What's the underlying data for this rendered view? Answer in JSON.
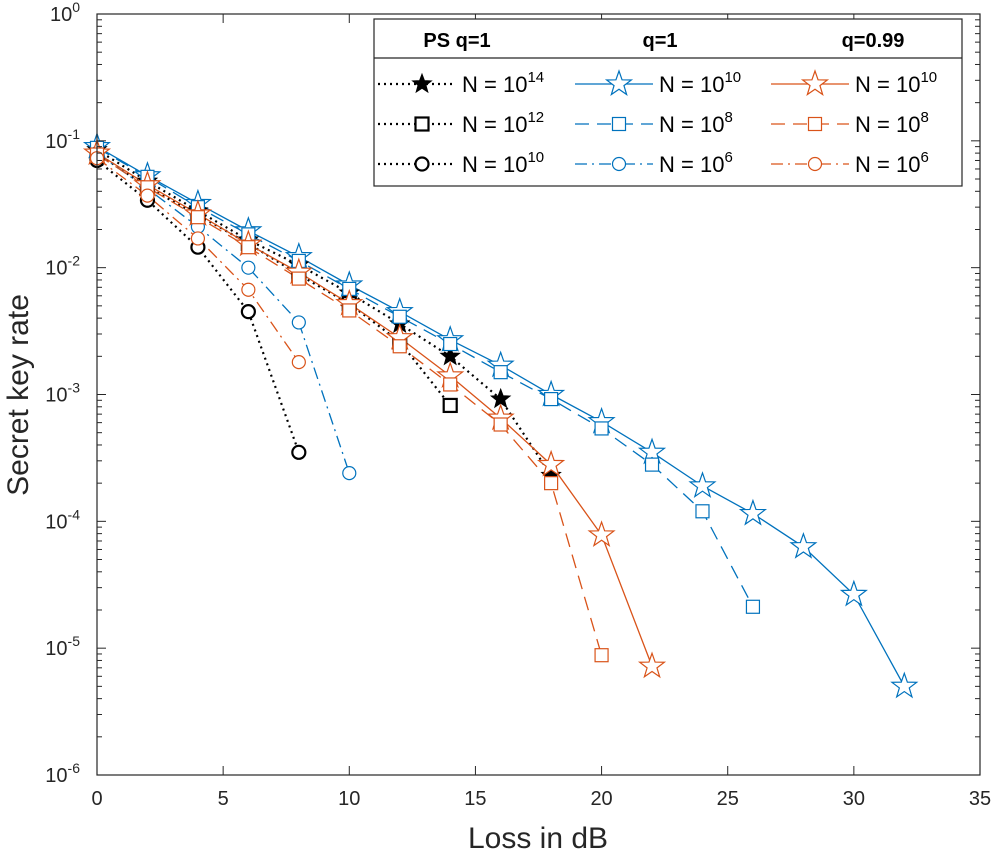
{
  "chart_data": {
    "type": "line",
    "xlabel": "Loss in dB",
    "ylabel": "Secret key rate",
    "xlim": [
      0,
      35
    ],
    "ylim_log10": [
      -6,
      0
    ],
    "yscale": "log",
    "x_ticks": [
      0,
      5,
      10,
      15,
      20,
      25,
      30,
      35
    ],
    "y_tick_exponents": [
      -6,
      -5,
      -4,
      -3,
      -2,
      -1,
      0
    ],
    "y_tick_base": "10",
    "legend": {
      "placement": "top-right",
      "columns": [
        {
          "heading": "PS q=1"
        },
        {
          "heading": "q=1"
        },
        {
          "heading": "q=0.99"
        }
      ],
      "entry_prefix": "N = 10"
    },
    "colors": {
      "ps": "#000000",
      "q1": "#0072BD",
      "q099": "#D95319",
      "axis": "#262626"
    },
    "series": [
      {
        "name": "PS q=1, N = 10^14",
        "group": "ps",
        "n_exp": "14",
        "line": "dotted",
        "marker": "filled-star",
        "color": "#000000",
        "x": [
          0,
          2,
          4,
          6,
          8,
          10,
          12,
          14,
          16,
          18
        ],
        "y": [
          0.085,
          0.048,
          0.028,
          0.0165,
          0.0105,
          0.0063,
          0.0036,
          0.002,
          0.00092,
          0.00023
        ]
      },
      {
        "name": "PS q=1, N = 10^12",
        "group": "ps",
        "n_exp": "12",
        "line": "dotted",
        "marker": "square",
        "color": "#000000",
        "x": [
          0,
          2,
          4,
          6,
          8,
          10,
          12,
          14
        ],
        "y": [
          0.08,
          0.043,
          0.026,
          0.0155,
          0.0088,
          0.0052,
          0.0026,
          0.00082
        ]
      },
      {
        "name": "PS q=1, N = 10^10",
        "group": "ps",
        "n_exp": "10",
        "line": "dotted",
        "marker": "circle",
        "color": "#000000",
        "x": [
          0,
          2,
          4,
          6,
          8
        ],
        "y": [
          0.07,
          0.034,
          0.0145,
          0.0045,
          0.00035
        ]
      },
      {
        "name": "q=1, N = 10^10",
        "group": "q1",
        "n_exp": "10",
        "line": "solid",
        "marker": "star",
        "color": "#0072BD",
        "x": [
          0,
          2,
          4,
          6,
          8,
          10,
          12,
          14,
          16,
          18,
          20,
          22,
          24,
          26,
          28,
          30,
          32
        ],
        "y": [
          0.09,
          0.053,
          0.032,
          0.0195,
          0.0122,
          0.0073,
          0.0045,
          0.0027,
          0.0017,
          0.001,
          0.00061,
          0.00035,
          0.00019,
          0.000115,
          6.3e-05,
          2.65e-05,
          5e-06
        ]
      },
      {
        "name": "q=1, N = 10^8",
        "group": "q1",
        "n_exp": "8",
        "line": "dashed",
        "marker": "square",
        "color": "#0072BD",
        "x": [
          0,
          2,
          4,
          6,
          8,
          10,
          12,
          14,
          16,
          18,
          20,
          22,
          24,
          26
        ],
        "y": [
          0.088,
          0.052,
          0.03,
          0.0183,
          0.0113,
          0.0068,
          0.0041,
          0.0025,
          0.0015,
          0.00092,
          0.00054,
          0.00028,
          0.00012,
          2.12e-05
        ]
      },
      {
        "name": "q=1, N = 10^6",
        "group": "q1",
        "n_exp": "6",
        "line": "dashdot",
        "marker": "circle",
        "color": "#0072BD",
        "x": [
          0,
          2,
          4,
          6,
          8,
          10
        ],
        "y": [
          0.08,
          0.042,
          0.021,
          0.01,
          0.0037,
          0.00024
        ]
      },
      {
        "name": "q=0.99, N = 10^10",
        "group": "q099",
        "n_exp": "10",
        "line": "solid",
        "marker": "star",
        "color": "#D95319",
        "x": [
          0,
          2,
          4,
          6,
          8,
          10,
          12,
          14,
          16,
          18,
          20,
          22
        ],
        "y": [
          0.08,
          0.045,
          0.0265,
          0.0153,
          0.0092,
          0.0052,
          0.0028,
          0.0014,
          0.00065,
          0.00028,
          7.8e-05,
          7.2e-06
        ]
      },
      {
        "name": "q=0.99, N = 10^8",
        "group": "q099",
        "n_exp": "8",
        "line": "dashed",
        "marker": "square",
        "color": "#D95319",
        "x": [
          0,
          2,
          4,
          6,
          8,
          10,
          12,
          14,
          16,
          18,
          20
        ],
        "y": [
          0.078,
          0.043,
          0.025,
          0.0145,
          0.0082,
          0.0046,
          0.0024,
          0.0012,
          0.00058,
          0.0002,
          8.8e-06
        ]
      },
      {
        "name": "q=0.99, N = 10^6",
        "group": "q099",
        "n_exp": "6",
        "line": "dashdot",
        "marker": "circle",
        "color": "#D95319",
        "x": [
          0,
          2,
          4,
          6,
          8
        ],
        "y": [
          0.073,
          0.037,
          0.017,
          0.0067,
          0.0018
        ]
      }
    ]
  }
}
